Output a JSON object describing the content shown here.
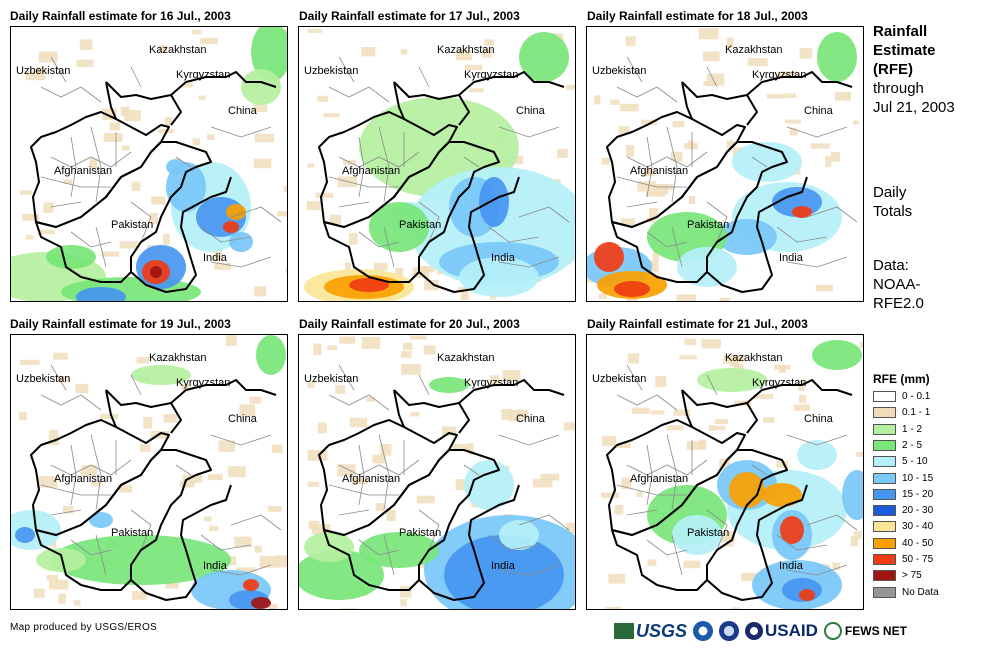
{
  "panels": [
    {
      "title": "Daily Rainfall estimate for 16 Jul., 2003",
      "pattern": "p16"
    },
    {
      "title": "Daily Rainfall estimate for 17 Jul., 2003",
      "pattern": "p17"
    },
    {
      "title": "Daily Rainfall estimate for 18 Jul., 2003",
      "pattern": "p18"
    },
    {
      "title": "Daily Rainfall estimate for 19 Jul., 2003",
      "pattern": "p19"
    },
    {
      "title": "Daily Rainfall estimate for 20 Jul., 2003",
      "pattern": "p20"
    },
    {
      "title": "Daily Rainfall estimate for 21 Jul., 2003",
      "pattern": "p21"
    }
  ],
  "countries": {
    "kazakhstan": "Kazakhstan",
    "uzbekistan": "Uzbekistan",
    "kyrgyzstan": "Kyrgyzstan",
    "china": "China",
    "afghanistan": "Afghanistan",
    "pakistan": "Pakistan",
    "india": "India"
  },
  "side": {
    "title_l1": "Rainfall",
    "title_l2": "Estimate",
    "title_l3": "(RFE)",
    "title_l4": "through",
    "title_l5": "Jul 21, 2003",
    "totals_l1": "Daily",
    "totals_l2": "Totals",
    "data_l1": "Data:",
    "data_l2": "NOAA-",
    "data_l3": "RFE2.0"
  },
  "legend": {
    "title": "RFE (mm)",
    "items": [
      {
        "label": "0 - 0.1",
        "color": "#ffffff"
      },
      {
        "label": "0.1 - 1",
        "color": "#f0dcb8"
      },
      {
        "label": "1 - 2",
        "color": "#b4f0a0"
      },
      {
        "label": "2 - 5",
        "color": "#78e678"
      },
      {
        "label": "5 - 10",
        "color": "#b4f0f8"
      },
      {
        "label": "10 - 15",
        "color": "#78c8f8"
      },
      {
        "label": "15 - 20",
        "color": "#4696f0"
      },
      {
        "label": "20 - 30",
        "color": "#1e5adc"
      },
      {
        "label": "30 - 40",
        "color": "#fae696"
      },
      {
        "label": "40 - 50",
        "color": "#faa000"
      },
      {
        "label": "50 - 75",
        "color": "#f03c14"
      },
      {
        "label": "> 75",
        "color": "#a01414"
      },
      {
        "label": "No Data",
        "color": "#969696"
      }
    ]
  },
  "credit": "Map produced by USGS/EROS",
  "logos": {
    "usgs": "USGS",
    "usaid": "USAID",
    "fews": "FEWS NET"
  }
}
